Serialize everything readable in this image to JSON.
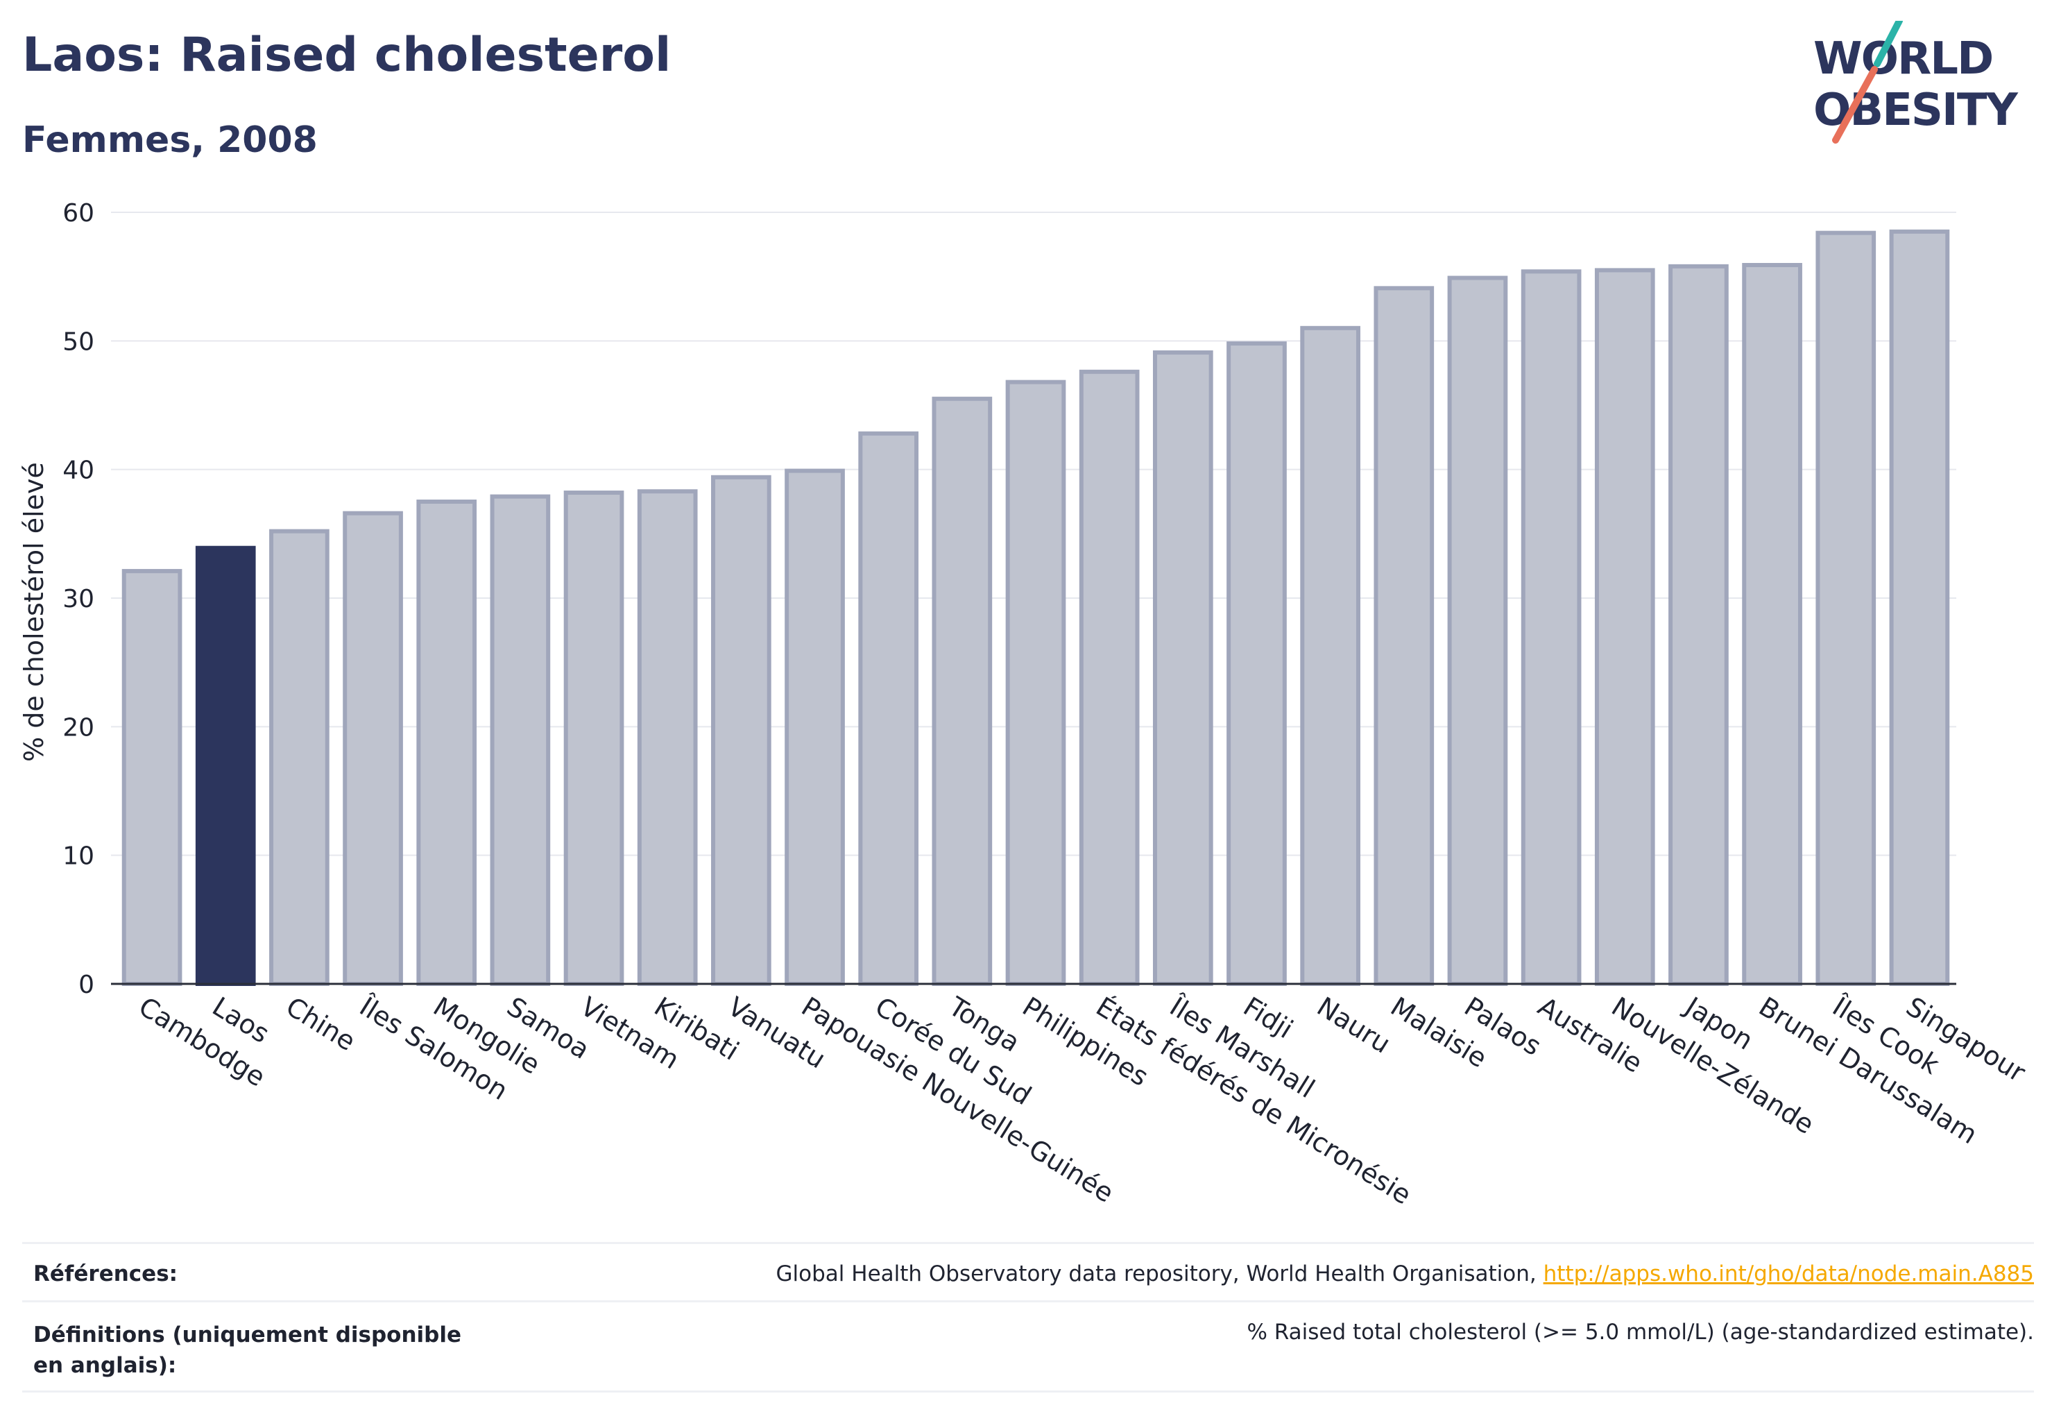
{
  "header": {
    "title": "Laos: Raised cholesterol",
    "subtitle": "Femmes, 2008"
  },
  "logo": {
    "line1": "WORLD",
    "line2": "OBESITY"
  },
  "colors": {
    "highlight_bar": "#2c355d",
    "other_bar_fill": "#bfc3cf",
    "other_bar_stroke": "#a0a6bb",
    "text": "#2c355d",
    "link": "#f5a800",
    "logo_slash_teal": "#2bb3a8",
    "logo_slash_orange": "#e8705a"
  },
  "chart_data": {
    "type": "bar",
    "title": "Laos: Raised cholesterol",
    "subtitle": "Femmes, 2008",
    "ylabel": "% de cholestérol élevé",
    "xlabel": "",
    "ylim": [
      0,
      60
    ],
    "yticks": [
      0,
      10,
      20,
      30,
      40,
      50,
      60
    ],
    "grid": true,
    "highlight": "Laos",
    "categories": [
      "Cambodge",
      "Laos",
      "Chine",
      "Îles Salomon",
      "Mongolie",
      "Samoa",
      "Vietnam",
      "Kiribati",
      "Vanuatu",
      "Papouasie Nouvelle-Guinée",
      "Corée du Sud",
      "Tonga",
      "Philippines",
      "États fédérés de Micronésie",
      "Îles Marshall",
      "Fidji",
      "Nauru",
      "Malaisie",
      "Palaos",
      "Australie",
      "Nouvelle-Zélande",
      "Japon",
      "Brunei Darussalam",
      "Îles Cook",
      "Singapour"
    ],
    "values": [
      32.1,
      33.9,
      35.2,
      36.6,
      37.5,
      37.9,
      38.2,
      38.3,
      39.4,
      39.9,
      42.8,
      45.5,
      46.8,
      47.6,
      49.1,
      49.8,
      51.0,
      54.1,
      54.9,
      55.4,
      55.5,
      55.8,
      55.9,
      58.4,
      58.5
    ]
  },
  "footer": {
    "references_label": "Références:",
    "references_text": "Global Health Observatory data repository, World Health Organisation, ",
    "references_link": "http://apps.who.int/gho/data/node.main.A885",
    "definitions_label": "Définitions (uniquement disponible en anglais):",
    "definitions_text": "% Raised total cholesterol (>= 5.0 mmol/L) (age-standardized estimate)."
  }
}
